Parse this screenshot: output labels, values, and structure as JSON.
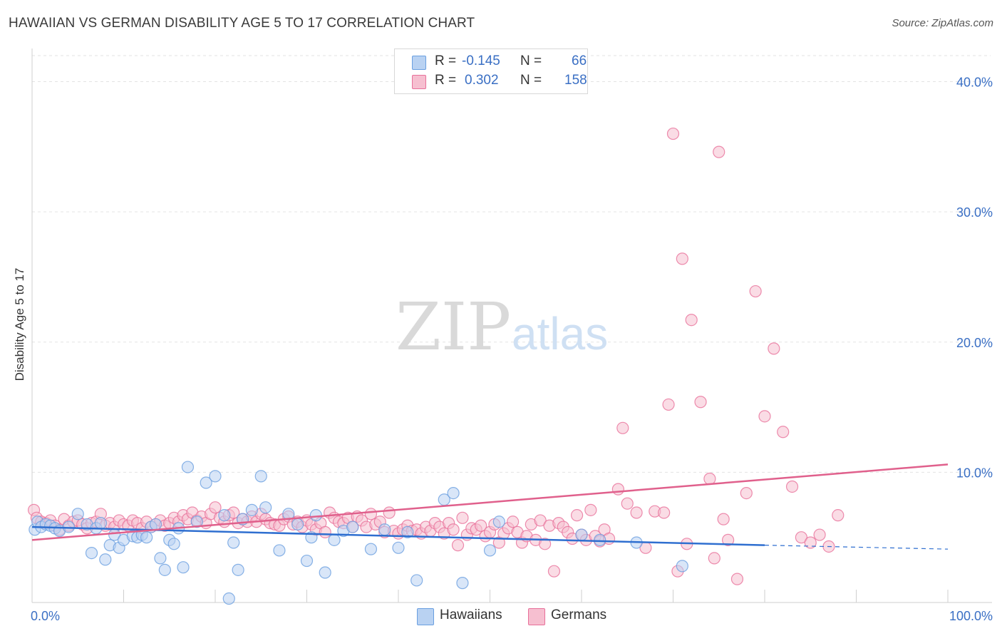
{
  "chart_data": {
    "type": "scatter",
    "title": "HAWAIIAN VS GERMAN DISABILITY AGE 5 TO 17 CORRELATION CHART",
    "source": "Source: ZipAtlas.com",
    "xlabel": "",
    "ylabel": "Disability Age 5 to 17",
    "xlim": [
      0,
      100
    ],
    "ylim": [
      0,
      42
    ],
    "x_tick_labels": [
      "0.0%",
      "100.0%"
    ],
    "y_ticks": [
      10,
      20,
      30,
      40
    ],
    "y_tick_labels": [
      "10.0%",
      "20.0%",
      "30.0%",
      "40.0%"
    ],
    "watermark": "ZIPatlas",
    "legend": [
      {
        "r_label": "R =",
        "r_value": "-0.145",
        "n_label": "N =",
        "n_value": "66"
      },
      {
        "r_label": "R =",
        "r_value": "0.302",
        "n_label": "N =",
        "n_value": "158"
      }
    ],
    "series": [
      {
        "name": "Hawaiians",
        "color": "#6a9fe0",
        "fill": "#b9d2f2",
        "trend": {
          "x0": 0,
          "y0": 5.8,
          "x1": 80,
          "y1": 4.4,
          "dash_to_x": 100,
          "dash_to_y": 4.1
        },
        "points": [
          [
            0.3,
            5.6
          ],
          [
            0.6,
            6.2
          ],
          [
            1,
            5.8
          ],
          [
            1.5,
            6
          ],
          [
            2,
            5.9
          ],
          [
            2.5,
            5.7
          ],
          [
            3,
            5.5
          ],
          [
            4,
            5.8
          ],
          [
            5,
            6.8
          ],
          [
            6,
            6
          ],
          [
            6.5,
            3.8
          ],
          [
            7,
            5.7
          ],
          [
            7.5,
            6.1
          ],
          [
            8,
            3.3
          ],
          [
            8.5,
            4.4
          ],
          [
            9,
            5.2
          ],
          [
            9.5,
            4.2
          ],
          [
            10,
            4.8
          ],
          [
            11,
            5.1
          ],
          [
            11.5,
            5
          ],
          [
            12,
            5.2
          ],
          [
            12.5,
            5
          ],
          [
            13,
            5.8
          ],
          [
            13.5,
            6
          ],
          [
            14,
            3.4
          ],
          [
            14.5,
            2.5
          ],
          [
            15,
            4.8
          ],
          [
            15.5,
            4.5
          ],
          [
            16,
            5.7
          ],
          [
            16.5,
            2.7
          ],
          [
            17,
            10.4
          ],
          [
            18,
            6.2
          ],
          [
            19,
            9.2
          ],
          [
            20,
            9.7
          ],
          [
            21,
            6.7
          ],
          [
            21.5,
            0.3
          ],
          [
            22,
            4.6
          ],
          [
            22.5,
            2.5
          ],
          [
            23,
            6.4
          ],
          [
            24,
            7.1
          ],
          [
            25,
            9.7
          ],
          [
            25.5,
            7.3
          ],
          [
            27,
            4
          ],
          [
            28,
            6.8
          ],
          [
            29,
            6
          ],
          [
            30,
            3.2
          ],
          [
            30.5,
            5
          ],
          [
            31,
            6.7
          ],
          [
            32,
            2.3
          ],
          [
            33,
            4.8
          ],
          [
            34,
            5.5
          ],
          [
            35,
            5.8
          ],
          [
            37,
            4.1
          ],
          [
            38.5,
            5.6
          ],
          [
            40,
            4.2
          ],
          [
            41,
            5.4
          ],
          [
            42,
            1.7
          ],
          [
            45,
            7.9
          ],
          [
            46,
            8.4
          ],
          [
            47,
            1.5
          ],
          [
            50,
            4
          ],
          [
            51,
            6.2
          ],
          [
            60,
            5.2
          ],
          [
            62,
            4.8
          ],
          [
            66,
            4.6
          ],
          [
            71,
            2.8
          ]
        ]
      },
      {
        "name": "Germans",
        "color": "#e8709a",
        "fill": "#f6bfd0",
        "trend": {
          "x0": 0,
          "y0": 4.8,
          "x1": 100,
          "y1": 10.6
        },
        "points": [
          [
            0.2,
            7.1
          ],
          [
            0.5,
            6.5
          ],
          [
            1,
            6.2
          ],
          [
            1.5,
            6.1
          ],
          [
            2,
            6.3
          ],
          [
            2.5,
            5.9
          ],
          [
            3,
            5.6
          ],
          [
            3.5,
            6.4
          ],
          [
            4,
            5.9
          ],
          [
            4.5,
            6.2
          ],
          [
            5,
            6.3
          ],
          [
            5.5,
            6
          ],
          [
            6,
            5.7
          ],
          [
            6.5,
            6.1
          ],
          [
            7,
            6.2
          ],
          [
            7.5,
            6.8
          ],
          [
            8,
            5.9
          ],
          [
            8.5,
            6.1
          ],
          [
            9,
            5.8
          ],
          [
            9.5,
            6.3
          ],
          [
            10,
            6
          ],
          [
            10.5,
            5.9
          ],
          [
            11,
            6.3
          ],
          [
            11.5,
            6.1
          ],
          [
            12,
            5.7
          ],
          [
            12.5,
            6.2
          ],
          [
            13,
            5.8
          ],
          [
            13.5,
            6
          ],
          [
            14,
            6.3
          ],
          [
            14.5,
            5.9
          ],
          [
            15,
            6.1
          ],
          [
            15.5,
            6.5
          ],
          [
            16,
            6.2
          ],
          [
            16.5,
            6.7
          ],
          [
            17,
            6.4
          ],
          [
            17.5,
            6.9
          ],
          [
            18,
            6.3
          ],
          [
            18.5,
            6.6
          ],
          [
            19,
            6.1
          ],
          [
            19.5,
            6.8
          ],
          [
            20,
            7.3
          ],
          [
            20.5,
            6.5
          ],
          [
            21,
            6.2
          ],
          [
            21.5,
            6.7
          ],
          [
            22,
            6.9
          ],
          [
            22.5,
            6.1
          ],
          [
            23,
            6.4
          ],
          [
            23.5,
            6.2
          ],
          [
            24,
            6.6
          ],
          [
            24.5,
            6.2
          ],
          [
            25,
            6.8
          ],
          [
            25.5,
            6.4
          ],
          [
            26,
            6.1
          ],
          [
            26.5,
            6
          ],
          [
            27,
            5.9
          ],
          [
            27.5,
            6.4
          ],
          [
            28,
            6.6
          ],
          [
            28.5,
            6
          ],
          [
            29,
            6.2
          ],
          [
            29.5,
            5.8
          ],
          [
            30,
            6.3
          ],
          [
            30.5,
            6
          ],
          [
            31,
            5.6
          ],
          [
            31.5,
            6.1
          ],
          [
            32,
            5.4
          ],
          [
            32.5,
            6.9
          ],
          [
            33,
            6.5
          ],
          [
            33.5,
            6.2
          ],
          [
            34,
            6.1
          ],
          [
            34.5,
            6.5
          ],
          [
            35,
            5.8
          ],
          [
            35.5,
            6.6
          ],
          [
            36,
            6.3
          ],
          [
            36.5,
            5.8
          ],
          [
            37,
            6.8
          ],
          [
            37.5,
            6
          ],
          [
            38,
            6.2
          ],
          [
            38.5,
            5.4
          ],
          [
            39,
            6.9
          ],
          [
            39.5,
            5.5
          ],
          [
            40,
            5.3
          ],
          [
            40.5,
            5.6
          ],
          [
            41,
            5.9
          ],
          [
            41.5,
            5.5
          ],
          [
            42,
            5.6
          ],
          [
            42.5,
            5.3
          ],
          [
            43,
            5.8
          ],
          [
            43.5,
            5.5
          ],
          [
            44,
            6.1
          ],
          [
            44.5,
            5.8
          ],
          [
            45,
            5.3
          ],
          [
            45.5,
            6.1
          ],
          [
            46,
            5.6
          ],
          [
            46.5,
            4.4
          ],
          [
            47,
            6.5
          ],
          [
            47.5,
            5.2
          ],
          [
            48,
            5.7
          ],
          [
            48.5,
            5.6
          ],
          [
            49,
            5.9
          ],
          [
            49.5,
            5.1
          ],
          [
            50,
            5.4
          ],
          [
            50.5,
            6
          ],
          [
            51,
            4.6
          ],
          [
            51.5,
            5.3
          ],
          [
            52,
            5.7
          ],
          [
            52.5,
            6.2
          ],
          [
            53,
            5.4
          ],
          [
            53.5,
            4.6
          ],
          [
            54,
            5.1
          ],
          [
            54.5,
            6
          ],
          [
            55,
            4.8
          ],
          [
            55.5,
            6.3
          ],
          [
            56,
            4.5
          ],
          [
            56.5,
            5.9
          ],
          [
            57,
            2.4
          ],
          [
            57.5,
            6.1
          ],
          [
            58,
            5.8
          ],
          [
            58.5,
            5.4
          ],
          [
            59,
            4.9
          ],
          [
            59.5,
            6.7
          ],
          [
            60,
            5.2
          ],
          [
            60.5,
            4.8
          ],
          [
            61,
            7.1
          ],
          [
            61.5,
            5.1
          ],
          [
            62,
            4.7
          ],
          [
            62.5,
            5.6
          ],
          [
            63,
            4.9
          ],
          [
            64,
            8.7
          ],
          [
            64.5,
            13.4
          ],
          [
            65,
            7.6
          ],
          [
            66,
            6.9
          ],
          [
            67,
            4.2
          ],
          [
            68,
            7
          ],
          [
            69,
            6.9
          ],
          [
            69.5,
            15.2
          ],
          [
            70,
            36
          ],
          [
            70.5,
            2.4
          ],
          [
            71,
            26.4
          ],
          [
            71.5,
            4.5
          ],
          [
            72,
            21.7
          ],
          [
            73,
            15.4
          ],
          [
            74,
            9.5
          ],
          [
            74.5,
            3.4
          ],
          [
            75,
            34.6
          ],
          [
            75.5,
            6.4
          ],
          [
            76,
            4.8
          ],
          [
            77,
            1.8
          ],
          [
            78,
            8.4
          ],
          [
            79,
            23.9
          ],
          [
            80,
            14.3
          ],
          [
            81,
            19.5
          ],
          [
            82,
            13.1
          ],
          [
            83,
            8.9
          ],
          [
            84,
            5
          ],
          [
            85,
            4.6
          ],
          [
            86,
            5.2
          ],
          [
            87,
            4.3
          ],
          [
            88,
            6.7
          ]
        ]
      }
    ]
  }
}
